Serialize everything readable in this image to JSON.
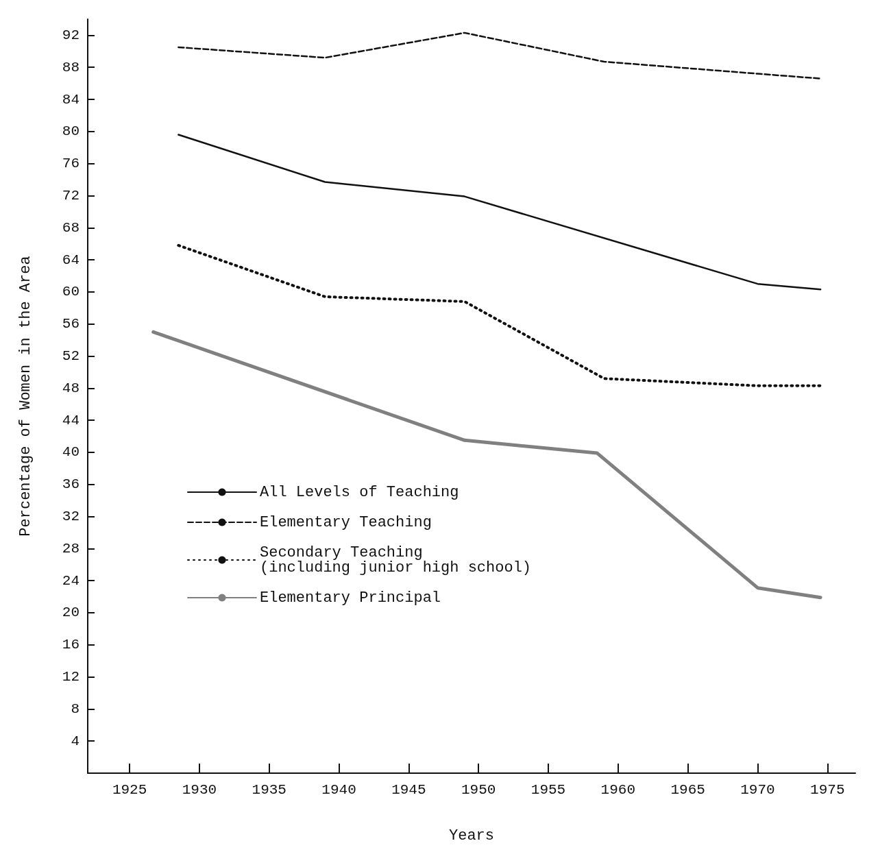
{
  "chart_data": {
    "type": "line",
    "xlabel": "Years",
    "ylabel": "Percentage of Women in the Area",
    "xlim": [
      1922,
      1977
    ],
    "xticks": [
      1925,
      1930,
      1935,
      1940,
      1945,
      1950,
      1955,
      1960,
      1965,
      1970,
      1975
    ],
    "ylim": [
      0,
      94
    ],
    "yticks": [
      4,
      8,
      12,
      16,
      20,
      24,
      28,
      32,
      36,
      40,
      44,
      48,
      52,
      56,
      60,
      64,
      68,
      72,
      76,
      80,
      84,
      88,
      92
    ],
    "grid": false,
    "legend": "bottom left",
    "marker": "none",
    "series": [
      {
        "name": "All Levels of Teaching",
        "color": "#111111",
        "line_style": "solid",
        "x": [
          1928.5,
          1939,
          1949,
          1970,
          1974.5
        ],
        "values": [
          79.6,
          73.7,
          71.9,
          61,
          60.3
        ]
      },
      {
        "name": "Elementary Teaching",
        "color": "#111111",
        "line_style": "dashed",
        "x": [
          1928.5,
          1939,
          1949,
          1959,
          1970,
          1974.5
        ],
        "values": [
          90.5,
          89.2,
          92.3,
          88.7,
          87.2,
          86.6
        ]
      },
      {
        "name": "Secondary Teaching\n(including junior high school)",
        "color": "#111111",
        "line_style": "dotted",
        "x": [
          1928.5,
          1939,
          1949,
          1959,
          1970,
          1974.5
        ],
        "values": [
          65.8,
          59.4,
          58.8,
          49.2,
          48.3,
          48.3
        ]
      },
      {
        "name": "Elementary Principal",
        "color": "#808080",
        "line_style": "solid",
        "x": [
          1926.7,
          1949,
          1958.5,
          1970,
          1974.5
        ],
        "values": [
          55,
          41.5,
          39.9,
          23.1,
          21.9
        ]
      }
    ]
  }
}
